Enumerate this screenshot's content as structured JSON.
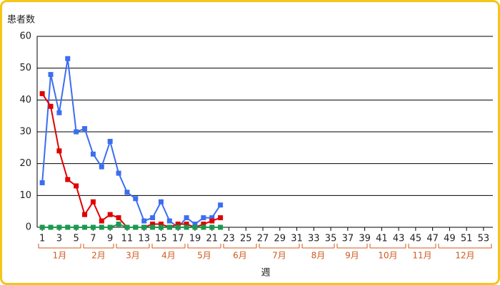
{
  "chart_data": {
    "type": "line",
    "y_label": "患者数",
    "x_label": "週",
    "x": [
      1,
      2,
      3,
      4,
      5,
      6,
      7,
      8,
      9,
      10,
      11,
      12,
      13,
      14,
      15,
      16,
      17,
      18,
      19,
      20,
      21,
      22
    ],
    "series": [
      {
        "color": "#3b6ef0",
        "values": [
          14,
          48,
          36,
          53,
          30,
          31,
          23,
          19,
          27,
          17,
          11,
          9,
          2,
          3,
          8,
          2,
          0,
          3,
          1,
          3,
          3,
          7
        ]
      },
      {
        "color": "#e00000",
        "values": [
          42,
          38,
          24,
          15,
          13,
          4,
          8,
          2,
          4,
          3,
          0,
          0,
          0,
          1,
          1,
          0,
          1,
          1,
          0,
          1,
          2,
          3
        ]
      },
      {
        "color": "#1a9a50",
        "values": [
          0,
          0,
          0,
          0,
          0,
          0,
          0,
          0,
          0,
          1,
          0,
          0,
          0,
          0,
          0,
          0,
          0,
          0,
          0,
          0,
          0,
          0
        ]
      }
    ],
    "xlim": [
      0.4,
      54.1
    ],
    "xticks": [
      1,
      3,
      5,
      7,
      9,
      11,
      13,
      15,
      17,
      19,
      21,
      23,
      25,
      27,
      29,
      31,
      33,
      35,
      37,
      39,
      41,
      43,
      45,
      47,
      49,
      51,
      53
    ],
    "ylim": [
      0,
      60
    ],
    "yticks": [
      0,
      10,
      20,
      30,
      40,
      50,
      60
    ],
    "grid": true,
    "months": [
      "1月",
      "2月",
      "3月",
      "4月",
      "5月",
      "6月",
      "7月",
      "8月",
      "9月",
      "10月",
      "11月",
      "12月"
    ]
  }
}
